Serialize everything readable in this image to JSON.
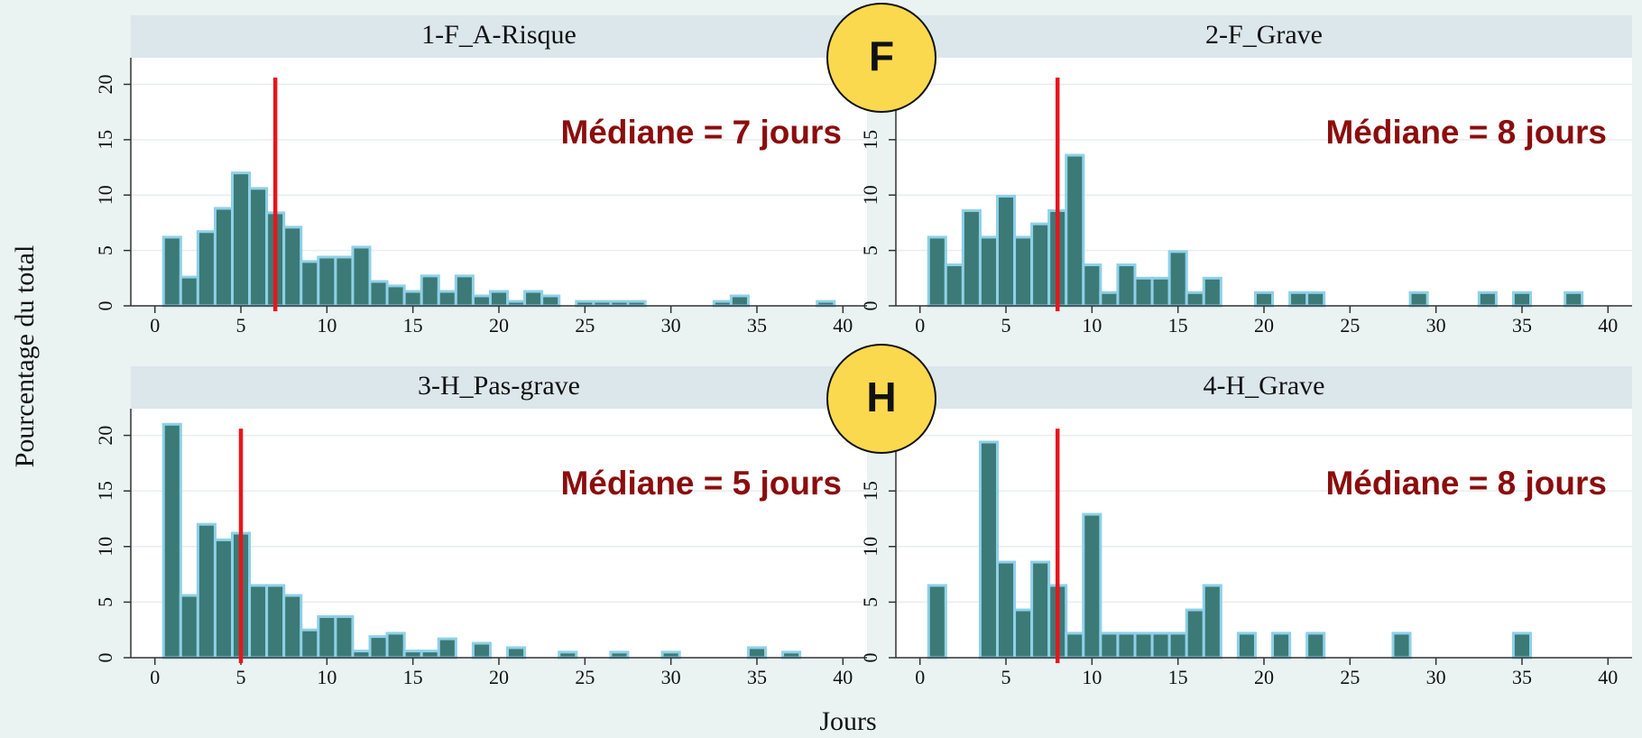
{
  "ylabel": "Pourcentage du total",
  "xlabel": "Jours",
  "badges": [
    "F",
    "H"
  ],
  "chart_data": [
    {
      "type": "histogram",
      "title": "1-F_A-Risque",
      "annotation": "Médiane = 7 jours",
      "median": 7,
      "median_color": "#e8151b",
      "bins": [
        0.5,
        1.5,
        2.5,
        3.5,
        4.5,
        5.5,
        6.5,
        7.5,
        8.5,
        9.5,
        10.5,
        11.5,
        12.5,
        13.5,
        14.5,
        15.5,
        16.5,
        17.5,
        18.5,
        19.5,
        20.5,
        21.5,
        22.5,
        23.5,
        24.5,
        25.5,
        26.5,
        27.5,
        28.5,
        29.5,
        30.5,
        31.5,
        32.5,
        33.5,
        34.5,
        35.5,
        36.5,
        37.5,
        38.5,
        39.5,
        40.5
      ],
      "values": [
        6.2,
        2.6,
        6.7,
        8.8,
        12,
        10.6,
        8.4,
        7.1,
        4,
        4.4,
        4.4,
        5.3,
        2.2,
        1.8,
        1.3,
        2.7,
        1.3,
        2.7,
        0.9,
        1.3,
        0.4,
        1.3,
        0.9,
        0,
        0.4,
        0.4,
        0.4,
        0.4,
        0,
        0,
        0,
        0,
        0.4,
        0.9,
        0,
        0,
        0,
        0,
        0.4,
        0
      ],
      "color": "#3b7a76",
      "edge_color": "#8fd0e8",
      "xlim": [
        -1.4,
        41.4
      ],
      "ylim": [
        0,
        22.4
      ],
      "xticks": [
        0,
        5,
        10,
        15,
        20,
        25,
        30,
        35,
        40
      ],
      "yticks": [
        0,
        5,
        10,
        15,
        20
      ],
      "grid": true
    },
    {
      "type": "histogram",
      "title": "2-F_Grave",
      "annotation": "Médiane = 8 jours",
      "median": 8,
      "median_color": "#e8151b",
      "bins": [
        0.5,
        1.5,
        2.5,
        3.5,
        4.5,
        5.5,
        6.5,
        7.5,
        8.5,
        9.5,
        10.5,
        11.5,
        12.5,
        13.5,
        14.5,
        15.5,
        16.5,
        17.5,
        18.5,
        19.5,
        20.5,
        21.5,
        22.5,
        23.5,
        24.5,
        25.5,
        26.5,
        27.5,
        28.5,
        29.5,
        30.5,
        31.5,
        32.5,
        33.5,
        34.5,
        35.5,
        36.5,
        37.5,
        38.5,
        39.5,
        40.5
      ],
      "values": [
        6.2,
        3.7,
        8.6,
        6.2,
        9.9,
        6.2,
        7.4,
        8.6,
        13.6,
        3.7,
        1.2,
        3.7,
        2.5,
        2.5,
        4.9,
        1.2,
        2.5,
        0,
        0,
        1.2,
        0,
        1.2,
        1.2,
        0,
        0,
        0,
        0,
        0,
        1.2,
        0,
        0,
        0,
        1.2,
        0,
        1.2,
        0,
        0,
        1.2,
        0,
        0
      ],
      "color": "#3b7a76",
      "edge_color": "#8fd0e8",
      "xlim": [
        -1.4,
        41.4
      ],
      "ylim": [
        0,
        22.4
      ],
      "xticks": [
        0,
        5,
        10,
        15,
        20,
        25,
        30,
        35,
        40
      ],
      "yticks": [
        0,
        5,
        10,
        15,
        20
      ],
      "grid": true
    },
    {
      "type": "histogram",
      "title": "3-H_Pas-grave",
      "annotation": "Médiane = 5 jours",
      "median": 5,
      "median_color": "#e8151b",
      "bins": [
        0.5,
        1.5,
        2.5,
        3.5,
        4.5,
        5.5,
        6.5,
        7.5,
        8.5,
        9.5,
        10.5,
        11.5,
        12.5,
        13.5,
        14.5,
        15.5,
        16.5,
        17.5,
        18.5,
        19.5,
        20.5,
        21.5,
        22.5,
        23.5,
        24.5,
        25.5,
        26.5,
        27.5,
        28.5,
        29.5,
        30.5,
        31.5,
        32.5,
        33.5,
        34.5,
        35.5,
        36.5,
        37.5,
        38.5,
        39.5,
        40.5
      ],
      "values": [
        21,
        5.6,
        12,
        10.6,
        11.2,
        6.5,
        6.5,
        5.6,
        2.5,
        3.7,
        3.7,
        0.6,
        1.9,
        2.2,
        0.6,
        0.6,
        1.7,
        0,
        1.3,
        0,
        0.9,
        0,
        0,
        0.5,
        0,
        0,
        0.5,
        0,
        0,
        0.5,
        0,
        0,
        0,
        0,
        0.9,
        0,
        0.5,
        0,
        0,
        0
      ],
      "color": "#3b7a76",
      "edge_color": "#8fd0e8",
      "xlim": [
        -1.4,
        41.4
      ],
      "ylim": [
        0,
        22.4
      ],
      "xticks": [
        0,
        5,
        10,
        15,
        20,
        25,
        30,
        35,
        40
      ],
      "yticks": [
        0,
        5,
        10,
        15,
        20
      ],
      "grid": true
    },
    {
      "type": "histogram",
      "title": "4-H_Grave",
      "annotation": "Médiane = 8 jours",
      "median": 8,
      "median_color": "#e8151b",
      "bins": [
        0.5,
        1.5,
        2.5,
        3.5,
        4.5,
        5.5,
        6.5,
        7.5,
        8.5,
        9.5,
        10.5,
        11.5,
        12.5,
        13.5,
        14.5,
        15.5,
        16.5,
        17.5,
        18.5,
        19.5,
        20.5,
        21.5,
        22.5,
        23.5,
        24.5,
        25.5,
        26.5,
        27.5,
        28.5,
        29.5,
        30.5,
        31.5,
        32.5,
        33.5,
        34.5,
        35.5,
        36.5,
        37.5,
        38.5,
        39.5,
        40.5
      ],
      "values": [
        6.5,
        0,
        0,
        19.4,
        8.6,
        4.3,
        8.6,
        6.5,
        2.2,
        12.9,
        2.2,
        2.2,
        2.2,
        2.2,
        2.2,
        4.3,
        6.5,
        0,
        2.2,
        0,
        2.2,
        0,
        2.2,
        0,
        0,
        0,
        0,
        2.2,
        0,
        0,
        0,
        0,
        0,
        0,
        2.2,
        0,
        0,
        0,
        0,
        0
      ],
      "color": "#3b7a76",
      "edge_color": "#8fd0e8",
      "xlim": [
        -1.4,
        41.4
      ],
      "ylim": [
        0,
        22.4
      ],
      "xticks": [
        0,
        5,
        10,
        15,
        20,
        25,
        30,
        35,
        40
      ],
      "yticks": [
        0,
        5,
        10,
        15,
        20
      ],
      "grid": true
    }
  ]
}
